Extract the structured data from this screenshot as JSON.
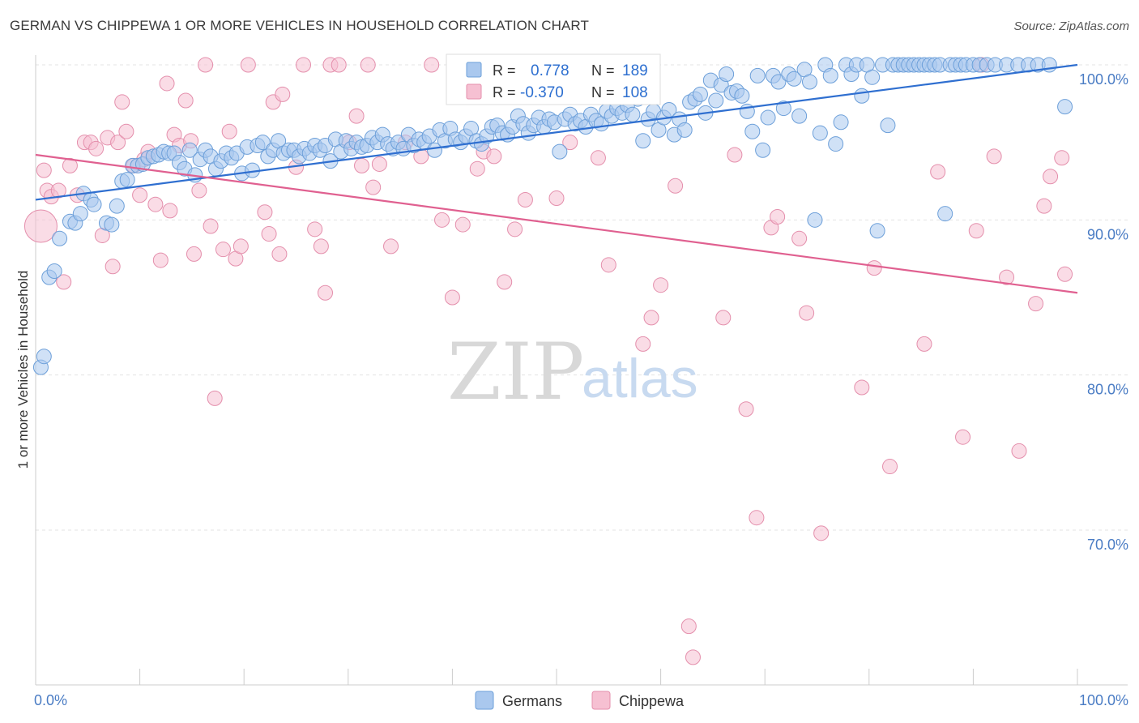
{
  "title": "GERMAN VS CHIPPEWA 1 OR MORE VEHICLES IN HOUSEHOLD CORRELATION CHART",
  "source": "Source: ZipAtlas.com",
  "watermark": {
    "zip": "ZIP",
    "atlas": "atlas"
  },
  "colors": {
    "germans_fill": "#aac8ee",
    "germans_stroke": "#6c9fd9",
    "germans_line": "#2f6fd0",
    "chippewa_fill": "#f6c0d2",
    "chippewa_stroke": "#e48fac",
    "chippewa_line": "#e06090",
    "grid": "#e3e3e3",
    "tick_text": "#4a7cc4"
  },
  "legend_top": {
    "rows": [
      {
        "r_label": "R =",
        "r_value": "0.778",
        "n_label": "N =",
        "n_value": "189"
      },
      {
        "r_label": "R =",
        "r_value": "-0.370",
        "n_label": "N =",
        "n_value": "108"
      }
    ]
  },
  "legend_bottom": [
    "Germans",
    "Chippewa"
  ],
  "chart_data": {
    "type": "scatter",
    "ylabel": "1 or more Vehicles in Household",
    "x_tick_labels": [
      "0.0%",
      "100.0%"
    ],
    "y_tick_labels": [
      "100.0%",
      "90.0%",
      "80.0%",
      "70.0%"
    ],
    "y_ticks": [
      100,
      90,
      80,
      70
    ],
    "xlim": [
      0,
      100
    ],
    "ylim": [
      60.5,
      101.5
    ],
    "grid": true,
    "series": [
      {
        "name": "Germans",
        "r": 0.778,
        "n": 189,
        "trend": {
          "x": [
            0,
            100
          ],
          "y": [
            91.3,
            100.0
          ]
        },
        "points": [
          [
            0.5,
            80.5
          ],
          [
            0.8,
            81.2
          ],
          [
            1.3,
            86.3
          ],
          [
            1.8,
            86.7
          ],
          [
            2.3,
            88.8
          ],
          [
            3.3,
            89.9
          ],
          [
            3.8,
            89.8
          ],
          [
            4.3,
            90.4
          ],
          [
            4.6,
            91.7
          ],
          [
            5.3,
            91.3
          ],
          [
            5.6,
            91.0
          ],
          [
            6.8,
            89.8
          ],
          [
            7.3,
            89.7
          ],
          [
            7.8,
            90.9
          ],
          [
            8.3,
            92.5
          ],
          [
            8.8,
            92.6
          ],
          [
            9.3,
            93.5
          ],
          [
            9.8,
            93.5
          ],
          [
            10.3,
            93.6
          ],
          [
            10.8,
            94.0
          ],
          [
            11.3,
            94.1
          ],
          [
            11.8,
            94.2
          ],
          [
            12.3,
            94.4
          ],
          [
            12.8,
            94.3
          ],
          [
            13.3,
            94.3
          ],
          [
            13.8,
            93.7
          ],
          [
            14.3,
            93.3
          ],
          [
            14.8,
            94.5
          ],
          [
            15.3,
            92.9
          ],
          [
            15.8,
            93.9
          ],
          [
            16.3,
            94.5
          ],
          [
            16.8,
            94.1
          ],
          [
            17.3,
            93.3
          ],
          [
            17.8,
            93.8
          ],
          [
            18.3,
            94.3
          ],
          [
            18.8,
            94.0
          ],
          [
            19.3,
            94.3
          ],
          [
            19.8,
            93.0
          ],
          [
            20.3,
            94.7
          ],
          [
            20.8,
            93.2
          ],
          [
            21.3,
            94.8
          ],
          [
            21.8,
            95.0
          ],
          [
            22.3,
            94.1
          ],
          [
            22.8,
            94.5
          ],
          [
            23.3,
            95.1
          ],
          [
            23.8,
            94.3
          ],
          [
            24.3,
            94.5
          ],
          [
            24.8,
            94.5
          ],
          [
            25.3,
            94.1
          ],
          [
            25.8,
            94.6
          ],
          [
            26.3,
            94.3
          ],
          [
            26.8,
            94.8
          ],
          [
            27.3,
            94.5
          ],
          [
            27.8,
            94.8
          ],
          [
            28.3,
            93.8
          ],
          [
            28.8,
            95.2
          ],
          [
            29.3,
            94.4
          ],
          [
            29.8,
            95.1
          ],
          [
            30.3,
            94.6
          ],
          [
            30.8,
            95.0
          ],
          [
            31.3,
            94.7
          ],
          [
            31.8,
            94.8
          ],
          [
            32.3,
            95.3
          ],
          [
            32.8,
            95.0
          ],
          [
            33.3,
            95.5
          ],
          [
            33.8,
            94.9
          ],
          [
            34.3,
            94.6
          ],
          [
            34.8,
            95.0
          ],
          [
            35.3,
            94.6
          ],
          [
            35.8,
            95.5
          ],
          [
            36.3,
            94.8
          ],
          [
            36.8,
            95.2
          ],
          [
            37.3,
            95.0
          ],
          [
            37.8,
            95.4
          ],
          [
            38.3,
            94.5
          ],
          [
            38.8,
            95.8
          ],
          [
            39.3,
            95.1
          ],
          [
            39.8,
            95.9
          ],
          [
            40.3,
            95.2
          ],
          [
            40.8,
            95.0
          ],
          [
            41.3,
            95.4
          ],
          [
            41.8,
            95.9
          ],
          [
            42.3,
            95.1
          ],
          [
            42.8,
            94.9
          ],
          [
            43.3,
            95.4
          ],
          [
            43.8,
            96.0
          ],
          [
            44.3,
            96.1
          ],
          [
            44.8,
            95.6
          ],
          [
            45.3,
            95.5
          ],
          [
            45.8,
            96.0
          ],
          [
            46.3,
            96.7
          ],
          [
            46.8,
            96.2
          ],
          [
            47.3,
            95.6
          ],
          [
            47.8,
            96.1
          ],
          [
            48.3,
            96.6
          ],
          [
            48.8,
            96.0
          ],
          [
            49.3,
            96.5
          ],
          [
            49.8,
            96.3
          ],
          [
            50.3,
            94.4
          ],
          [
            50.8,
            96.5
          ],
          [
            51.3,
            96.8
          ],
          [
            51.8,
            96.2
          ],
          [
            52.3,
            96.4
          ],
          [
            52.8,
            96.0
          ],
          [
            53.3,
            96.8
          ],
          [
            53.8,
            96.4
          ],
          [
            54.3,
            96.2
          ],
          [
            54.8,
            97.0
          ],
          [
            55.3,
            96.7
          ],
          [
            55.8,
            97.2
          ],
          [
            56.3,
            96.9
          ],
          [
            56.8,
            97.4
          ],
          [
            57.3,
            96.8
          ],
          [
            57.8,
            97.8
          ],
          [
            58.3,
            95.1
          ],
          [
            58.8,
            96.5
          ],
          [
            59.3,
            97.0
          ],
          [
            59.8,
            95.8
          ],
          [
            60.3,
            96.6
          ],
          [
            60.8,
            97.1
          ],
          [
            61.3,
            95.5
          ],
          [
            61.8,
            96.5
          ],
          [
            62.3,
            95.8
          ],
          [
            62.8,
            97.6
          ],
          [
            63.3,
            97.8
          ],
          [
            63.8,
            98.1
          ],
          [
            64.3,
            96.9
          ],
          [
            64.8,
            99.0
          ],
          [
            65.3,
            97.7
          ],
          [
            65.8,
            98.7
          ],
          [
            66.3,
            99.4
          ],
          [
            66.8,
            98.2
          ],
          [
            67.3,
            98.3
          ],
          [
            67.8,
            98.0
          ],
          [
            68.3,
            97.0
          ],
          [
            68.8,
            95.7
          ],
          [
            69.3,
            99.3
          ],
          [
            69.8,
            94.5
          ],
          [
            70.3,
            96.6
          ],
          [
            70.8,
            99.3
          ],
          [
            71.3,
            98.9
          ],
          [
            71.8,
            97.2
          ],
          [
            72.3,
            99.4
          ],
          [
            72.8,
            99.1
          ],
          [
            73.3,
            96.7
          ],
          [
            73.8,
            99.7
          ],
          [
            74.3,
            98.9
          ],
          [
            74.8,
            90.0
          ],
          [
            75.3,
            95.6
          ],
          [
            75.8,
            100.0
          ],
          [
            76.3,
            99.3
          ],
          [
            76.8,
            94.9
          ],
          [
            77.3,
            96.3
          ],
          [
            77.8,
            100.0
          ],
          [
            78.3,
            99.4
          ],
          [
            78.8,
            100.0
          ],
          [
            79.3,
            98.0
          ],
          [
            79.8,
            100.0
          ],
          [
            80.3,
            99.2
          ],
          [
            80.8,
            89.3
          ],
          [
            81.3,
            100.0
          ],
          [
            81.8,
            96.1
          ],
          [
            82.3,
            100.0
          ],
          [
            82.8,
            100.0
          ],
          [
            83.3,
            100.0
          ],
          [
            83.8,
            100.0
          ],
          [
            84.3,
            100.0
          ],
          [
            84.8,
            100.0
          ],
          [
            85.3,
            100.0
          ],
          [
            85.8,
            100.0
          ],
          [
            86.3,
            100.0
          ],
          [
            86.8,
            100.0
          ],
          [
            87.3,
            90.4
          ],
          [
            87.8,
            100.0
          ],
          [
            88.3,
            100.0
          ],
          [
            88.8,
            100.0
          ],
          [
            89.3,
            100.0
          ],
          [
            90.0,
            100.0
          ],
          [
            90.6,
            100.0
          ],
          [
            91.3,
            100.0
          ],
          [
            92.1,
            100.0
          ],
          [
            93.2,
            100.0
          ],
          [
            94.3,
            100.0
          ],
          [
            95.3,
            100.0
          ],
          [
            96.2,
            100.0
          ],
          [
            97.3,
            100.0
          ],
          [
            98.8,
            97.3
          ]
        ]
      },
      {
        "name": "Chippewa",
        "r": -0.37,
        "n": 108,
        "trend": {
          "x": [
            0,
            100
          ],
          "y": [
            94.2,
            85.3
          ]
        },
        "points": [
          [
            0.5,
            89.6
          ],
          [
            0.8,
            93.2
          ],
          [
            1.1,
            91.9
          ],
          [
            1.5,
            91.5
          ],
          [
            2.2,
            91.9
          ],
          [
            2.7,
            86.0
          ],
          [
            3.3,
            93.5
          ],
          [
            4.0,
            91.6
          ],
          [
            4.7,
            95.0
          ],
          [
            5.3,
            95.0
          ],
          [
            5.8,
            94.6
          ],
          [
            6.4,
            89.0
          ],
          [
            6.9,
            95.3
          ],
          [
            7.4,
            87.0
          ],
          [
            7.9,
            95.0
          ],
          [
            8.3,
            97.6
          ],
          [
            8.7,
            95.7
          ],
          [
            9.4,
            93.5
          ],
          [
            10.0,
            91.6
          ],
          [
            10.4,
            93.9
          ],
          [
            10.8,
            94.4
          ],
          [
            11.5,
            91.0
          ],
          [
            12.0,
            87.4
          ],
          [
            12.6,
            98.8
          ],
          [
            12.9,
            90.6
          ],
          [
            13.3,
            95.5
          ],
          [
            13.8,
            94.8
          ],
          [
            14.4,
            97.7
          ],
          [
            14.9,
            95.1
          ],
          [
            15.2,
            87.8
          ],
          [
            15.7,
            91.9
          ],
          [
            16.3,
            100.0
          ],
          [
            16.8,
            89.6
          ],
          [
            17.2,
            78.5
          ],
          [
            18.0,
            88.1
          ],
          [
            18.6,
            95.7
          ],
          [
            19.2,
            87.5
          ],
          [
            19.7,
            88.3
          ],
          [
            20.4,
            100.0
          ],
          [
            22.0,
            90.5
          ],
          [
            22.4,
            89.1
          ],
          [
            22.8,
            97.6
          ],
          [
            23.4,
            87.8
          ],
          [
            23.7,
            98.1
          ],
          [
            25.0,
            93.4
          ],
          [
            25.7,
            100.0
          ],
          [
            26.8,
            89.4
          ],
          [
            27.4,
            88.3
          ],
          [
            27.8,
            85.3
          ],
          [
            28.3,
            100.0
          ],
          [
            29.1,
            100.0
          ],
          [
            30.1,
            95.0
          ],
          [
            30.8,
            96.7
          ],
          [
            31.3,
            93.5
          ],
          [
            31.9,
            100.0
          ],
          [
            32.4,
            92.1
          ],
          [
            33.0,
            93.6
          ],
          [
            34.1,
            88.3
          ],
          [
            35.5,
            95.0
          ],
          [
            37.0,
            94.1
          ],
          [
            38.0,
            100.0
          ],
          [
            39.0,
            90.0
          ],
          [
            40.0,
            85.0
          ],
          [
            41.0,
            89.7
          ],
          [
            42.0,
            100.0
          ],
          [
            42.4,
            93.3
          ],
          [
            43.0,
            94.4
          ],
          [
            44.0,
            94.1
          ],
          [
            45.0,
            86.0
          ],
          [
            46.0,
            89.4
          ],
          [
            47.0,
            91.3
          ],
          [
            48.0,
            98.5
          ],
          [
            49.0,
            100.0
          ],
          [
            50.0,
            91.4
          ],
          [
            51.3,
            95.0
          ],
          [
            52.0,
            100.0
          ],
          [
            54.0,
            94.0
          ],
          [
            55.0,
            87.1
          ],
          [
            57.0,
            100.0
          ],
          [
            58.3,
            82.0
          ],
          [
            59.1,
            83.7
          ],
          [
            60.0,
            85.8
          ],
          [
            61.4,
            92.2
          ],
          [
            62.7,
            63.8
          ],
          [
            63.1,
            61.8
          ],
          [
            66.0,
            83.7
          ],
          [
            67.1,
            94.2
          ],
          [
            68.2,
            77.8
          ],
          [
            69.2,
            70.8
          ],
          [
            70.6,
            89.5
          ],
          [
            71.2,
            90.2
          ],
          [
            73.3,
            88.8
          ],
          [
            74.0,
            84.0
          ],
          [
            75.4,
            69.8
          ],
          [
            79.3,
            79.2
          ],
          [
            80.5,
            86.9
          ],
          [
            82.0,
            74.1
          ],
          [
            85.3,
            82.0
          ],
          [
            86.6,
            93.1
          ],
          [
            89.0,
            76.0
          ],
          [
            90.3,
            89.3
          ],
          [
            90.8,
            100.0
          ],
          [
            92.0,
            94.1
          ],
          [
            93.2,
            86.3
          ],
          [
            94.4,
            75.1
          ],
          [
            96.0,
            84.6
          ],
          [
            96.8,
            90.9
          ],
          [
            97.4,
            92.8
          ],
          [
            98.8,
            86.5
          ],
          [
            98.5,
            94.0
          ]
        ]
      }
    ]
  }
}
